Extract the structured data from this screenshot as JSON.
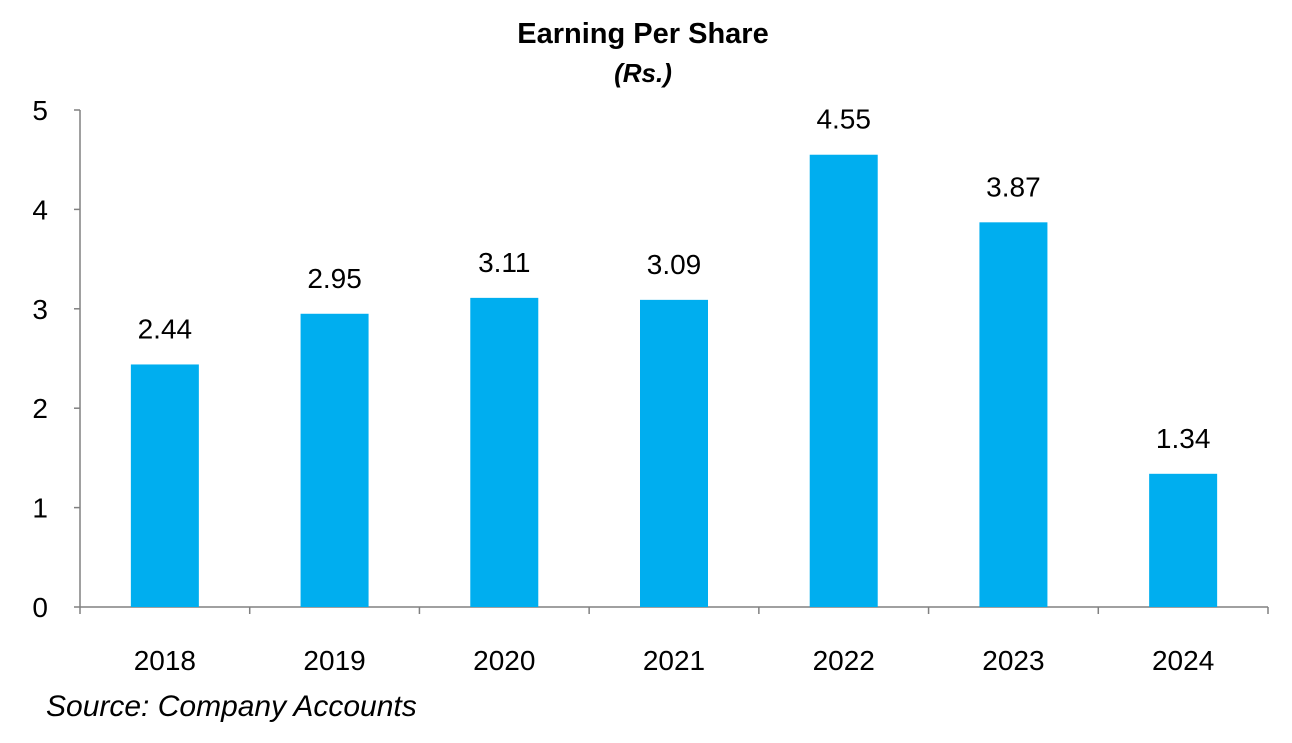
{
  "colors": {
    "bar": "#00AEEF",
    "axis": "#808080",
    "text": "#000000"
  },
  "chart_data": {
    "type": "bar",
    "title": "Earning Per Share",
    "subtitle": "(Rs.)",
    "xlabel": "",
    "ylabel": "",
    "categories": [
      "2018",
      "2019",
      "2020",
      "2021",
      "2022",
      "2023",
      "2024"
    ],
    "values": [
      2.44,
      2.95,
      3.11,
      3.09,
      4.55,
      3.87,
      1.34
    ],
    "data_labels": [
      "2.44",
      "2.95",
      "3.11",
      "3.09",
      "4.55",
      "3.87",
      "1.34"
    ],
    "ylim": [
      0,
      5
    ],
    "yticks": [
      0,
      1,
      2,
      3,
      4,
      5
    ],
    "grid": false,
    "legend": "none"
  },
  "source": "Source: Company Accounts"
}
